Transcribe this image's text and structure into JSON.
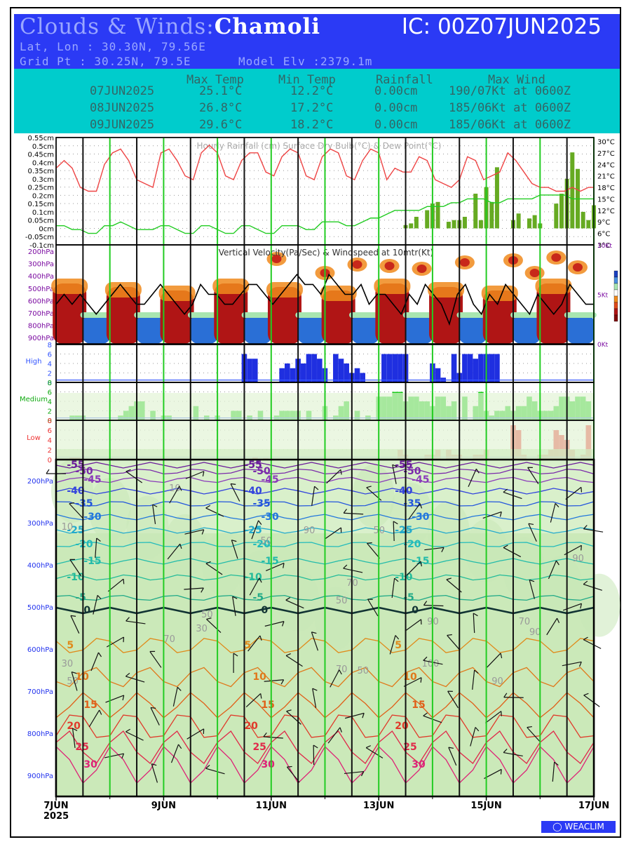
{
  "header": {
    "title_prefix": "Clouds & Winds:",
    "location": "Chamoli",
    "ic": "IC: 00Z07JUN2025",
    "latlon": "Lat, Lon : 30.30N, 79.56E",
    "gridpt": "Grid Pt  : 30.25N, 79.5E",
    "model_elv": "Model Elv :2379.1m"
  },
  "summary": {
    "headers": [
      "Max Temp",
      "Min Temp",
      "Rainfall",
      "Max Wind"
    ],
    "rows": [
      [
        "07JUN2025",
        "25.1°C",
        "12.2°C",
        "0.00cm",
        "190/07Kt at 0600Z"
      ],
      [
        "08JUN2025",
        "26.8°C",
        "17.2°C",
        "0.00cm",
        "185/06Kt at 0600Z"
      ],
      [
        "09JUN2025",
        "29.6°C",
        "18.2°C",
        "0.00cm",
        "185/06Kt at 0600Z"
      ]
    ]
  },
  "colors": {
    "header_bg": "#2b3af5",
    "summary_bg": "#00cccc",
    "rain": "#66aa22",
    "dry_bulb": "#ee4444",
    "dew_point": "#22cc22",
    "high_cloud": "#1f2fe0",
    "medium_cloud": "#19cc19",
    "low_cloud": "#ee3333",
    "day_line": "#111111",
    "noon_line": "#22cc22"
  },
  "chart_data": [
    {
      "type": "line",
      "title": "Hourly Rainfall (cm)   Surface Dry Bulb(°C)   & Dew Point(°C)",
      "left_ticks": [
        "0.55cm",
        "0.5cm",
        "0.45cm",
        "0.4cm",
        "0.35cm",
        "0.3cm",
        "0.25cm",
        "0.2cm",
        "0.15cm",
        "0.1cm",
        "0.05cm",
        "0cm",
        "-0.05cm",
        "-0.1cm"
      ],
      "right_ticks": [
        "30°C",
        "27°C",
        "24°C",
        "21°C",
        "18°C",
        "15°C",
        "12°C",
        "9°C",
        "6°C",
        "3°C"
      ],
      "ylim_rain": [
        -0.1,
        0.55
      ],
      "ylim_temp": [
        3,
        31
      ],
      "x_days": [
        0,
        10
      ],
      "series": [
        {
          "name": "Surface Dry Bulb(°C)",
          "x": [
            0,
            0.15,
            0.3,
            0.45,
            0.6,
            0.75,
            0.9,
            1.05,
            1.2,
            1.35,
            1.5,
            1.65,
            1.8,
            1.95,
            2.1,
            2.25,
            2.4,
            2.55,
            2.7,
            2.85,
            3.0,
            3.15,
            3.3,
            3.45,
            3.6,
            3.75,
            3.9,
            4.05,
            4.2,
            4.35,
            4.5,
            4.65,
            4.8,
            4.95,
            5.1,
            5.25,
            5.4,
            5.55,
            5.7,
            5.85,
            6.0,
            6.15,
            6.3,
            6.45,
            6.6,
            6.75,
            6.9,
            7.05,
            7.2,
            7.35,
            7.5,
            7.65,
            7.8,
            7.95,
            8.1,
            8.25,
            8.4,
            8.55,
            8.7,
            8.85,
            9.0,
            9.15,
            9.3,
            9.45,
            9.6,
            9.75,
            9.9,
            10.0
          ],
          "values": [
            23,
            25,
            23,
            18,
            17,
            17,
            24,
            27,
            28,
            25,
            20,
            19,
            18,
            27,
            28,
            25,
            21,
            20,
            27,
            29,
            27,
            21,
            20,
            25,
            27,
            27,
            22,
            21,
            26,
            28,
            27,
            21,
            20,
            26,
            28,
            27,
            21,
            20,
            25,
            28,
            27,
            20,
            23,
            22,
            22,
            26,
            25,
            20,
            19,
            18,
            20,
            26,
            25,
            20,
            21,
            22,
            27,
            25,
            22,
            19,
            18,
            18,
            17,
            17,
            18,
            17,
            18,
            18
          ]
        },
        {
          "name": "Dew Point(°C)",
          "x": [
            0,
            0.15,
            0.3,
            0.45,
            0.6,
            0.75,
            0.9,
            1.05,
            1.2,
            1.35,
            1.5,
            1.65,
            1.8,
            1.95,
            2.1,
            2.25,
            2.4,
            2.55,
            2.7,
            2.85,
            3.0,
            3.15,
            3.3,
            3.45,
            3.6,
            3.75,
            3.9,
            4.05,
            4.2,
            4.35,
            4.5,
            4.65,
            4.8,
            4.95,
            5.1,
            5.25,
            5.4,
            5.55,
            5.7,
            5.85,
            6.0,
            6.15,
            6.3,
            6.45,
            6.6,
            6.75,
            6.9,
            7.05,
            7.2,
            7.35,
            7.5,
            7.65,
            7.8,
            7.95,
            8.1,
            8.25,
            8.4,
            8.55,
            8.7,
            8.85,
            9.0,
            9.15,
            9.3,
            9.45,
            9.6,
            9.75,
            9.9,
            10.0
          ],
          "values": [
            8,
            8,
            7,
            7,
            6,
            6,
            8,
            8,
            9,
            8,
            7,
            7,
            7,
            8,
            8,
            7,
            6,
            6,
            8,
            8,
            7,
            6,
            6,
            8,
            8,
            7,
            6,
            6,
            8,
            8,
            8,
            7,
            7,
            9,
            9,
            9,
            8,
            8,
            9,
            10,
            10,
            11,
            12,
            12,
            12,
            12,
            13,
            13,
            13,
            14,
            14,
            15,
            15,
            15,
            14,
            14,
            15,
            15,
            15,
            15,
            16,
            16,
            16,
            16,
            15,
            15,
            15,
            15
          ]
        },
        {
          "name": "Hourly Rainfall (cm)",
          "x": [
            6.5,
            6.6,
            6.7,
            6.9,
            7.0,
            7.1,
            7.3,
            7.4,
            7.5,
            7.6,
            7.8,
            7.9,
            8.0,
            8.1,
            8.2,
            8.5,
            8.6,
            8.8,
            8.9,
            9.0,
            9.3,
            9.4,
            9.5,
            9.6,
            9.7,
            9.8,
            9.9,
            10.0
          ],
          "values": [
            0.02,
            0.03,
            0.07,
            0.11,
            0.15,
            0.16,
            0.04,
            0.05,
            0.05,
            0.07,
            0.21,
            0.05,
            0.25,
            0.16,
            0.37,
            0.05,
            0.09,
            0.06,
            0.08,
            0.03,
            0.15,
            0.21,
            0.3,
            0.46,
            0.36,
            0.1,
            0.05,
            0.14
          ]
        }
      ]
    },
    {
      "type": "heatmap",
      "title": "Vertical Velocity(Pa/Sec) & Windspeed at 10mtr(Kt)",
      "y_ticks": [
        "200hPa",
        "300hPa",
        "400hPa",
        "500hPa",
        "600hPa",
        "700hPa",
        "800hPa",
        "900hPa"
      ],
      "right_ticks": [
        "10Kt",
        "5Kt",
        "0Kt"
      ],
      "windspeed_10m_kt": [
        4,
        5,
        4,
        5,
        4,
        3,
        4,
        5,
        6,
        5,
        4,
        4,
        5,
        6,
        5,
        4,
        3,
        4,
        6,
        5,
        5,
        4,
        4,
        5,
        6,
        6,
        5,
        4,
        5,
        6,
        7,
        6,
        6,
        5,
        7,
        6,
        5,
        5,
        6,
        4,
        5,
        5,
        4,
        3,
        5,
        4,
        6,
        5,
        4,
        2,
        5,
        6,
        4,
        3,
        5,
        4,
        6,
        5,
        4,
        3,
        5,
        4,
        3,
        4,
        6,
        5,
        4,
        4
      ]
    },
    {
      "type": "bar",
      "title": "High",
      "y_ticks": [
        "8",
        "6",
        "4",
        "2",
        "0"
      ],
      "x": [
        3.5,
        3.6,
        3.7,
        4.2,
        4.3,
        4.4,
        4.5,
        4.6,
        4.7,
        4.8,
        4.9,
        5.0,
        5.2,
        5.3,
        5.4,
        5.5,
        5.6,
        5.7,
        6.1,
        6.2,
        6.3,
        6.4,
        6.5,
        7.0,
        7.1,
        7.2,
        7.4,
        7.5,
        7.6,
        7.7,
        7.8,
        7.9,
        8.0,
        8.1,
        8.2
      ],
      "values": [
        6,
        5,
        5,
        3,
        4,
        3,
        5,
        4,
        6,
        6,
        5,
        3,
        6,
        5,
        4,
        2,
        3,
        2,
        6,
        6,
        6,
        6,
        6,
        4,
        3,
        1,
        6,
        2,
        6,
        6,
        5,
        6,
        6,
        6,
        6
      ]
    },
    {
      "type": "bar",
      "title": "Medium",
      "y_ticks": [
        "8",
        "6",
        "4",
        "2",
        "0"
      ],
      "x": [
        0.3,
        0.4,
        0.5,
        1.2,
        1.3,
        1.4,
        1.5,
        1.6,
        1.8,
        2.0,
        2.1,
        2.6,
        2.8,
        3.0,
        3.3,
        3.4,
        3.6,
        3.8,
        4.1,
        4.2,
        4.3,
        4.4,
        4.5,
        4.7,
        5.0,
        5.2,
        5.3,
        5.4,
        5.6,
        5.8,
        6.0,
        6.1,
        6.2,
        6.3,
        6.4,
        6.5,
        6.6,
        6.7,
        6.8,
        6.9,
        7.0,
        7.1,
        7.2,
        7.3,
        7.4,
        7.6,
        7.8,
        7.9,
        8.0,
        8.1,
        8.2,
        8.3,
        8.4,
        8.5,
        8.6,
        8.7,
        8.8,
        8.9,
        9.0,
        9.1,
        9.2,
        9.3,
        9.4,
        9.5,
        9.6,
        9.7,
        9.8,
        9.9
      ],
      "values": [
        1,
        1,
        1,
        1,
        2,
        3,
        4,
        4,
        2,
        1,
        1,
        3,
        1,
        1,
        2,
        2,
        1,
        2,
        1,
        2,
        2,
        2,
        2,
        2,
        3,
        1,
        3,
        4,
        2,
        1,
        5,
        5,
        5,
        6,
        6,
        4,
        5,
        5,
        4,
        4,
        3,
        5,
        5,
        3,
        4,
        5,
        3,
        6,
        2,
        1,
        2,
        2,
        3,
        2,
        3,
        3,
        5,
        4,
        2,
        2,
        2,
        3,
        5,
        5,
        4,
        5,
        5,
        4
      ]
    },
    {
      "type": "bar",
      "title": "Low",
      "y_ticks": [
        "8",
        "6",
        "4",
        "2",
        "0"
      ],
      "x": [
        0.3,
        0.4,
        1.0,
        3.7,
        3.9,
        6.4,
        6.5,
        6.9,
        7.0,
        7.1,
        7.3,
        7.4,
        7.5,
        7.8,
        7.9,
        8.0,
        8.5,
        8.6,
        8.7,
        9.0,
        9.1,
        9.2,
        9.3,
        9.4,
        9.5,
        9.6,
        9.8,
        9.9
      ],
      "values": [
        0.5,
        0.5,
        0.3,
        0.5,
        0.3,
        2,
        1,
        1,
        1,
        2,
        2,
        1,
        1,
        1,
        1,
        2,
        7,
        6,
        1,
        1,
        1,
        2,
        6,
        5,
        4,
        2,
        1,
        7
      ]
    },
    {
      "type": "area",
      "title": "",
      "y_ticks": [
        "200hPa",
        "300hPa",
        "400hPa",
        "500hPa",
        "600hPa",
        "700hPa",
        "800hPa",
        "900hPa"
      ],
      "x_ticks": [
        "7JUN",
        "9JUN",
        "11JUN",
        "13JUN",
        "15JUN",
        "17JUN"
      ],
      "x_sub": "2025",
      "temperature_contours_label": [
        "-55",
        "-50",
        "-45",
        "-40",
        "-35",
        "-30",
        "-25",
        "-20",
        "-15",
        "-10",
        "-5",
        "0",
        "5",
        "10",
        "15",
        "20",
        "25",
        "30"
      ],
      "rh_labels": [
        "30",
        "50",
        "70",
        "90",
        "100"
      ]
    }
  ],
  "footer": {
    "logo": "WEACLIM"
  }
}
